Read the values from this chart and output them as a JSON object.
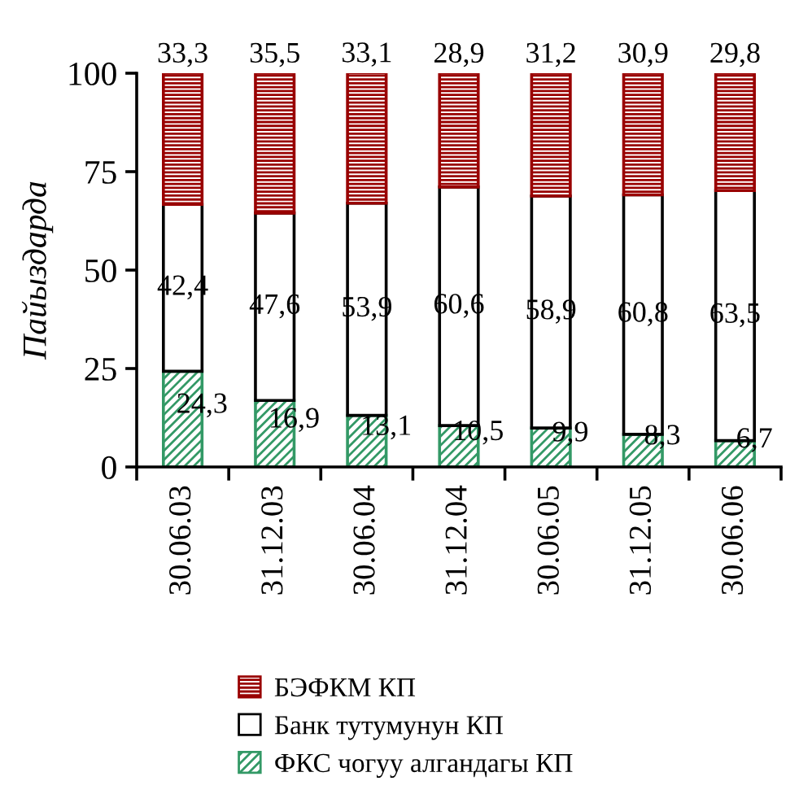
{
  "chart_data": {
    "type": "bar",
    "stacked": true,
    "ylabel": "Пайыздарда",
    "categories": [
      "30.06.03",
      "31.12.03",
      "30.06.04",
      "31.12.04",
      "30.06.05",
      "31.12.05",
      "30.06.06"
    ],
    "series": [
      {
        "name": "ФКС чогуу алгандагы КП",
        "color": "#339966",
        "values": [
          24.3,
          16.9,
          13.1,
          10.5,
          9.9,
          8.3,
          6.7
        ],
        "value_labels": [
          "24,3",
          "16,9",
          "13,1",
          "10,5",
          "9,9",
          "8,3",
          "6,7"
        ]
      },
      {
        "name": "Банк тутумунун КП",
        "color": "#ffffff",
        "values": [
          42.4,
          47.6,
          53.9,
          60.6,
          58.9,
          60.8,
          63.5
        ],
        "value_labels": [
          "42,4",
          "47,6",
          "53,9",
          "60,6",
          "58,9",
          "60,8",
          "63,5"
        ]
      },
      {
        "name": "БЭФКМ КП",
        "color": "#990000",
        "values": [
          33.3,
          35.5,
          33.1,
          28.9,
          31.2,
          30.9,
          29.8
        ],
        "value_labels": [
          "33,3",
          "35,5",
          "33,1",
          "28,9",
          "31,2",
          "30,9",
          "29,8"
        ]
      }
    ],
    "ylim": [
      0,
      100
    ],
    "yticks": [
      0,
      25,
      50,
      75,
      100
    ],
    "legend": "bottom"
  }
}
